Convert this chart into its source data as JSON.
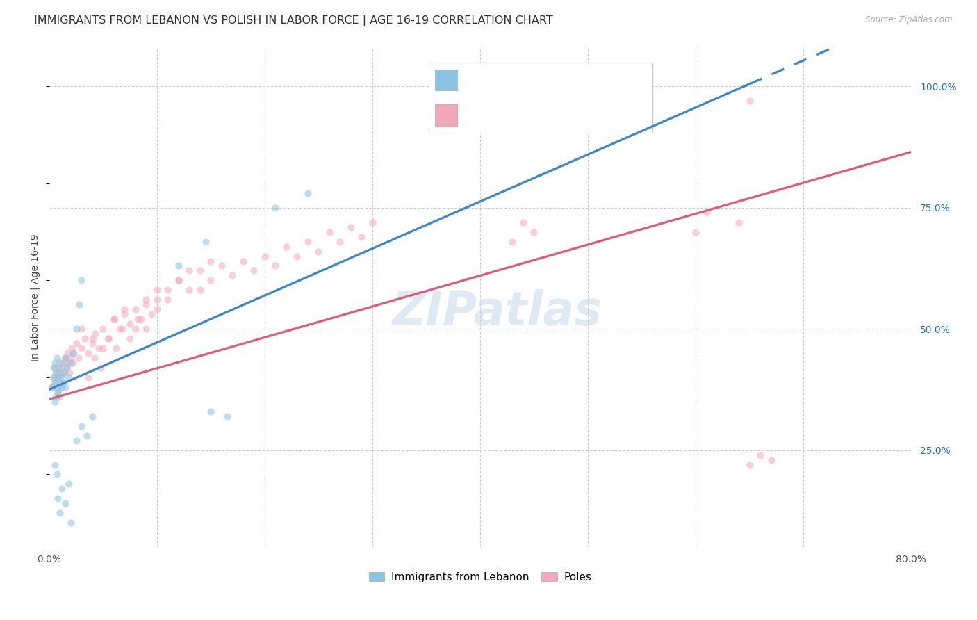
{
  "title": "IMMIGRANTS FROM LEBANON VS POLISH IN LABOR FORCE | AGE 16-19 CORRELATION CHART",
  "source": "Source: ZipAtlas.com",
  "ylabel": "In Labor Force | Age 16-19",
  "xlim": [
    0.0,
    0.8
  ],
  "ylim": [
    0.05,
    1.08
  ],
  "y_ticks": [
    0.25,
    0.5,
    0.75,
    1.0
  ],
  "y_tick_labels": [
    "25.0%",
    "50.0%",
    "75.0%",
    "100.0%"
  ],
  "x_tick_labels": [
    "0.0%",
    "80.0%"
  ],
  "color_blue": "#89c4e1",
  "color_pink": "#f4a7b9",
  "color_blue_line": "#3a86c8",
  "color_pink_line": "#e05a7a",
  "color_blue_text": "#2171b5",
  "watermark": "ZIPatlas",
  "grid_color": "#d0d0d0",
  "background_color": "#ffffff",
  "title_fontsize": 11.5,
  "axis_label_fontsize": 10,
  "tick_fontsize": 10,
  "scatter_size": 55,
  "scatter_alpha": 0.55,
  "line_width": 2.3,
  "blue_x": [
    0.003,
    0.004,
    0.004,
    0.005,
    0.005,
    0.005,
    0.006,
    0.006,
    0.007,
    0.007,
    0.008,
    0.008,
    0.009,
    0.009,
    0.01,
    0.01,
    0.011,
    0.012,
    0.012,
    0.013,
    0.014,
    0.015,
    0.015,
    0.016,
    0.018,
    0.02,
    0.022,
    0.025,
    0.028,
    0.03,
    0.005,
    0.007,
    0.008,
    0.01,
    0.012,
    0.015,
    0.018,
    0.02,
    0.025,
    0.03,
    0.035,
    0.04,
    0.12,
    0.145,
    0.15,
    0.165,
    0.21,
    0.24
  ],
  "blue_y": [
    0.38,
    0.4,
    0.42,
    0.35,
    0.39,
    0.43,
    0.36,
    0.41,
    0.38,
    0.44,
    0.37,
    0.4,
    0.42,
    0.36,
    0.39,
    0.41,
    0.38,
    0.4,
    0.43,
    0.39,
    0.41,
    0.38,
    0.44,
    0.42,
    0.4,
    0.43,
    0.45,
    0.5,
    0.55,
    0.6,
    0.22,
    0.2,
    0.15,
    0.12,
    0.17,
    0.14,
    0.18,
    0.1,
    0.27,
    0.3,
    0.28,
    0.32,
    0.63,
    0.68,
    0.33,
    0.32,
    0.75,
    0.78
  ],
  "pink_x": [
    0.003,
    0.004,
    0.005,
    0.006,
    0.007,
    0.008,
    0.009,
    0.01,
    0.011,
    0.012,
    0.013,
    0.014,
    0.015,
    0.016,
    0.017,
    0.018,
    0.019,
    0.02,
    0.021,
    0.022,
    0.023,
    0.025,
    0.027,
    0.03,
    0.033,
    0.036,
    0.04,
    0.043,
    0.046,
    0.05,
    0.055,
    0.06,
    0.065,
    0.07,
    0.075,
    0.08,
    0.085,
    0.09,
    0.095,
    0.1,
    0.11,
    0.12,
    0.13,
    0.14,
    0.15,
    0.16,
    0.17,
    0.18,
    0.19,
    0.2,
    0.21,
    0.22,
    0.23,
    0.24,
    0.25,
    0.26,
    0.27,
    0.28,
    0.29,
    0.3,
    0.03,
    0.04,
    0.05,
    0.06,
    0.07,
    0.08,
    0.09,
    0.1,
    0.11,
    0.12,
    0.13,
    0.14,
    0.15,
    0.43,
    0.44,
    0.45,
    0.6,
    0.61,
    0.64,
    0.65,
    0.036,
    0.042,
    0.048,
    0.055,
    0.062,
    0.068,
    0.075,
    0.082,
    0.09,
    0.1,
    0.65,
    0.66,
    0.67
  ],
  "pink_y": [
    0.38,
    0.4,
    0.42,
    0.39,
    0.41,
    0.37,
    0.43,
    0.4,
    0.42,
    0.38,
    0.41,
    0.43,
    0.44,
    0.42,
    0.45,
    0.43,
    0.41,
    0.44,
    0.46,
    0.43,
    0.45,
    0.47,
    0.44,
    0.46,
    0.48,
    0.45,
    0.47,
    0.49,
    0.46,
    0.5,
    0.48,
    0.52,
    0.5,
    0.53,
    0.51,
    0.54,
    0.52,
    0.55,
    0.53,
    0.56,
    0.58,
    0.6,
    0.58,
    0.62,
    0.6,
    0.63,
    0.61,
    0.64,
    0.62,
    0.65,
    0.63,
    0.67,
    0.65,
    0.68,
    0.66,
    0.7,
    0.68,
    0.71,
    0.69,
    0.72,
    0.5,
    0.48,
    0.46,
    0.52,
    0.54,
    0.5,
    0.56,
    0.58,
    0.56,
    0.6,
    0.62,
    0.58,
    0.64,
    0.68,
    0.72,
    0.7,
    0.7,
    0.74,
    0.72,
    0.97,
    0.4,
    0.44,
    0.42,
    0.48,
    0.46,
    0.5,
    0.48,
    0.52,
    0.5,
    0.54,
    0.22,
    0.24,
    0.23
  ]
}
